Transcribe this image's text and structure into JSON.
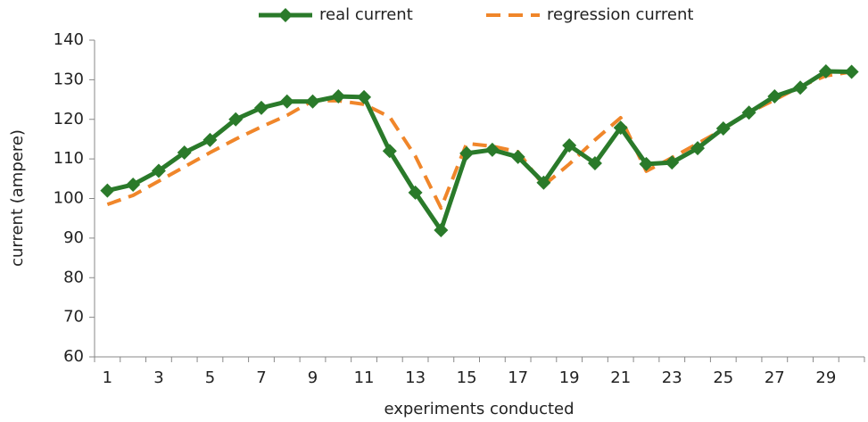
{
  "chart_data": {
    "type": "line",
    "x_label": "experiments conducted",
    "y_label": "current (ampere)",
    "categories": [
      1,
      null,
      3,
      null,
      5,
      null,
      7,
      null,
      9,
      null,
      11,
      null,
      13,
      null,
      15,
      null,
      17,
      null,
      19,
      null,
      21,
      null,
      23,
      null,
      25,
      null,
      27,
      null,
      29,
      null
    ],
    "series": [
      {
        "name": "real current",
        "color": "#2a7a2a",
        "marker": "diamond",
        "values": [
          102,
          103.5,
          107,
          111.6,
          114.8,
          120,
          122.9,
          124.5,
          124.5,
          125.8,
          125.6,
          112,
          101.5,
          92,
          111.4,
          112.3,
          110.5,
          104,
          113.4,
          108.9,
          117.9,
          108.7,
          109.1,
          112.7,
          117.7,
          121.7,
          125.8,
          128,
          132.1,
          132
        ]
      },
      {
        "name": "regression current",
        "color": "#f0862a",
        "dashed": true,
        "values": [
          98.5,
          100.8,
          104.4,
          108,
          111.6,
          115,
          118.1,
          121,
          124.7,
          124.7,
          123.8,
          120.6,
          110.7,
          97.6,
          113.9,
          113.2,
          111.8,
          103.3,
          108.7,
          114.8,
          120.4,
          106.9,
          110.3,
          113.9,
          117.5,
          121.7,
          124.9,
          128.3,
          131,
          132
        ]
      }
    ],
    "ylim": [
      60,
      140
    ],
    "yticks": [
      60,
      70,
      80,
      90,
      100,
      110,
      120,
      130,
      140
    ],
    "grid": false,
    "legend": "top"
  }
}
